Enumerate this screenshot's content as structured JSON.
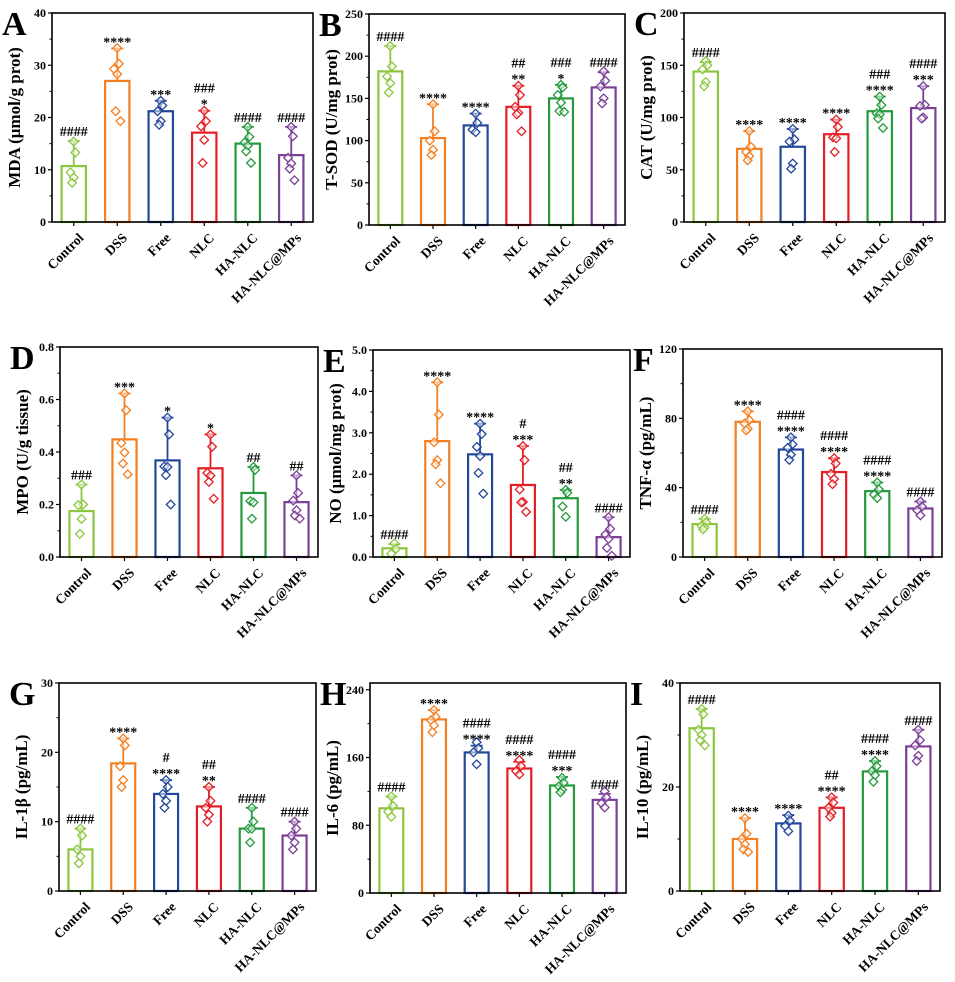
{
  "categories": [
    "Control",
    "DSS",
    "Free",
    "NLC",
    "HA-NLC",
    "HA-NLC@MPs"
  ],
  "group_colors": {
    "Control": "#8cc63f",
    "DSS": "#f47f20",
    "Free": "#23479a",
    "NLC": "#e31e25",
    "HA-NLC": "#249a3c",
    "HA-NLC@MPs": "#7b3f98"
  },
  "chart_data": [
    {
      "id": "A",
      "type": "bar",
      "panel_letter": "A",
      "ylabel": "MDA (μmol/g prot)",
      "ylim": [
        0,
        40
      ],
      "yticks": [
        0,
        10,
        20,
        30,
        40
      ],
      "tick_labels": [
        "0",
        "10",
        "20",
        "30",
        "40"
      ],
      "categories": [
        "Control",
        "DSS",
        "Free",
        "NLC",
        "HA-NLC",
        "HA-NLC@MPs"
      ],
      "values": [
        10.7,
        27.0,
        21.2,
        17.1,
        15.0,
        12.8
      ],
      "error_upper": [
        15.5,
        33.2,
        23.2,
        21.3,
        18.2,
        18.2
      ],
      "points": [
        [
          15.4,
          13.3,
          9.5,
          8.5,
          7.5
        ],
        [
          33.3,
          30.3,
          29.3,
          28.3,
          21.2,
          19.3
        ],
        [
          23.2,
          22.3,
          21.2,
          19.3,
          18.6
        ],
        [
          21.3,
          19.3,
          18.3,
          15.7,
          11.3
        ],
        [
          18.2,
          16.3,
          15.2,
          14.6,
          13.5,
          11.3
        ],
        [
          18.2,
          16.4,
          12.3,
          11.2,
          10.2,
          8.0
        ]
      ],
      "sig_hash": [
        "####",
        "",
        "",
        "###",
        "####",
        "####"
      ],
      "sig_star": [
        "",
        "****",
        "***",
        "*",
        "",
        ""
      ]
    },
    {
      "id": "B",
      "type": "bar",
      "panel_letter": "B",
      "ylabel": "T-SOD (U/mg prot)",
      "ylim": [
        0,
        250
      ],
      "yticks": [
        0,
        50,
        100,
        150,
        200,
        250
      ],
      "tick_labels": [
        "0",
        "50",
        "100",
        "150",
        "200",
        "250"
      ],
      "categories": [
        "Control",
        "DSS",
        "Free",
        "NLC",
        "HA-NLC",
        "HA-NLC@MPs"
      ],
      "values": [
        182,
        103,
        118,
        140,
        150,
        163
      ],
      "error_upper": [
        212,
        143,
        132,
        165,
        166,
        181
      ],
      "points": [
        [
          212,
          188,
          176,
          168,
          157
        ],
        [
          143,
          111,
          100,
          89,
          83
        ],
        [
          132,
          121,
          113,
          110
        ],
        [
          165,
          154,
          140,
          133,
          131,
          111
        ],
        [
          166,
          163,
          154,
          145,
          135,
          134
        ],
        [
          182,
          171,
          164,
          150,
          144
        ]
      ],
      "sig_hash": [
        "####",
        "",
        "",
        "##",
        "###",
        "####"
      ],
      "sig_star": [
        "",
        "****",
        "****",
        "**",
        "*",
        ""
      ]
    },
    {
      "id": "C",
      "type": "bar",
      "panel_letter": "C",
      "ylabel": "CAT (U/mg prot)",
      "ylim": [
        0,
        200
      ],
      "yticks": [
        0,
        50,
        100,
        150,
        200
      ],
      "tick_labels": [
        "0",
        "50",
        "100",
        "150",
        "200"
      ],
      "categories": [
        "Control",
        "DSS",
        "Free",
        "NLC",
        "HA-NLC",
        "HA-NLC@MPs"
      ],
      "values": [
        144,
        70,
        72,
        84,
        106,
        109
      ],
      "error_upper": [
        153,
        87,
        89,
        98,
        120,
        130
      ],
      "points": [
        [
          154,
          150,
          146,
          134,
          130
        ],
        [
          87,
          72,
          67,
          63,
          59
        ],
        [
          89,
          79,
          77,
          56,
          51
        ],
        [
          98,
          91,
          81,
          80,
          67
        ],
        [
          120,
          112,
          104,
          103,
          99,
          90
        ],
        [
          130,
          112,
          111,
          100,
          99
        ]
      ],
      "sig_hash": [
        "####",
        "",
        "",
        "",
        "###",
        "####"
      ],
      "sig_star": [
        "",
        "****",
        "****",
        "****",
        "****",
        "***"
      ]
    },
    {
      "id": "D",
      "type": "bar",
      "panel_letter": "D",
      "ylabel": "MPO (U/g tissue)",
      "ylim": [
        0,
        0.8
      ],
      "yticks": [
        0,
        0.2,
        0.4,
        0.6,
        0.8
      ],
      "tick_labels": [
        "0.0",
        "0.2",
        "0.4",
        "0.6",
        "0.8"
      ],
      "categories": [
        "Control",
        "DSS",
        "Free",
        "NLC",
        "HA-NLC",
        "HA-NLC@MPs"
      ],
      "values": [
        0.175,
        0.448,
        0.368,
        0.338,
        0.244,
        0.209
      ],
      "error_upper": [
        0.276,
        0.623,
        0.531,
        0.467,
        0.343,
        0.311
      ],
      "points": [
        [
          0.276,
          0.2,
          0.198,
          0.145,
          0.088
        ],
        [
          0.623,
          0.559,
          0.434,
          0.398,
          0.356,
          0.315
        ],
        [
          0.531,
          0.467,
          0.345,
          0.343,
          0.312,
          0.2
        ],
        [
          0.467,
          0.42,
          0.32,
          0.31,
          0.286,
          0.222
        ],
        [
          0.343,
          0.332,
          0.213,
          0.208,
          0.146
        ],
        [
          0.311,
          0.244,
          0.215,
          0.178,
          0.158,
          0.146
        ]
      ],
      "sig_hash": [
        "###",
        "",
        "",
        "",
        "##",
        "##"
      ],
      "sig_star": [
        "",
        "***",
        "*",
        "*",
        "",
        ""
      ]
    },
    {
      "id": "E",
      "type": "bar",
      "panel_letter": "E",
      "ylabel": "NO (μmol/mg prot)",
      "ylim": [
        0,
        5.0
      ],
      "yticks": [
        0,
        1,
        2,
        3,
        4,
        5
      ],
      "tick_labels": [
        "0.0",
        "1.0",
        "2.0",
        "3.0",
        "4.0",
        "5.0"
      ],
      "categories": [
        "Control",
        "DSS",
        "Free",
        "NLC",
        "HA-NLC",
        "HA-NLC@MPs"
      ],
      "values": [
        0.21,
        2.8,
        2.48,
        1.74,
        1.42,
        0.48
      ],
      "error_upper": [
        0.31,
        4.22,
        3.22,
        2.68,
        1.62,
        0.96
      ],
      "points": [
        [
          0.33,
          0.2,
          0.08
        ],
        [
          4.22,
          3.44,
          2.77,
          2.34,
          2.24,
          1.78
        ],
        [
          3.22,
          2.97,
          2.66,
          2.44,
          2.03,
          1.53
        ],
        [
          2.68,
          2.34,
          1.63,
          1.33,
          1.32,
          1.09
        ],
        [
          1.62,
          1.55,
          1.22,
          0.97
        ],
        [
          0.96,
          0.68,
          0.54,
          0.44,
          0.22,
          0.03
        ]
      ],
      "sig_hash": [
        "####",
        "",
        "",
        "#",
        "##",
        "####"
      ],
      "sig_star": [
        "",
        "****",
        "****",
        "***",
        "**",
        ""
      ]
    },
    {
      "id": "F",
      "type": "bar",
      "panel_letter": "F",
      "ylabel": "TNF-α (pg/mL)",
      "ylim": [
        0,
        120
      ],
      "yticks": [
        0,
        40,
        80,
        120
      ],
      "tick_labels": [
        "0",
        "40",
        "80",
        "120"
      ],
      "categories": [
        "Control",
        "DSS",
        "Free",
        "NLC",
        "HA-NLC",
        "HA-NLC@MPs"
      ],
      "values": [
        19,
        78,
        62,
        49,
        38,
        28
      ],
      "error_upper": [
        22,
        84,
        69,
        57,
        43,
        32
      ],
      "points": [
        [
          22,
          20,
          18,
          17,
          16
        ],
        [
          84,
          79,
          77,
          74,
          73
        ],
        [
          69,
          65,
          63,
          59,
          56
        ],
        [
          57,
          54,
          48,
          45,
          42
        ],
        [
          43,
          39,
          36,
          34
        ],
        [
          32,
          29,
          27,
          24
        ]
      ],
      "sig_hash": [
        "####",
        "",
        "####",
        "####",
        "####",
        "####"
      ],
      "sig_star": [
        "",
        "****",
        "****",
        "****",
        "****",
        ""
      ]
    },
    {
      "id": "G",
      "type": "bar",
      "panel_letter": "G",
      "ylabel": "IL-1β (pg/mL)",
      "ylim": [
        0,
        30
      ],
      "yticks": [
        0,
        10,
        20,
        30
      ],
      "tick_labels": [
        "0",
        "10",
        "20",
        "30"
      ],
      "categories": [
        "Control",
        "DSS",
        "Free",
        "NLC",
        "HA-NLC",
        "HA-NLC@MPs"
      ],
      "values": [
        6,
        18.4,
        14,
        12.2,
        9,
        8
      ],
      "error_upper": [
        9,
        22,
        16,
        15,
        12,
        10
      ],
      "points": [
        [
          9,
          8,
          6,
          5,
          4
        ],
        [
          22,
          21,
          18,
          16,
          15
        ],
        [
          16,
          15,
          14,
          13,
          12
        ],
        [
          15,
          13,
          12,
          11,
          10
        ],
        [
          12,
          10,
          9,
          9,
          7
        ],
        [
          10,
          9,
          8,
          7,
          6
        ]
      ],
      "sig_hash": [
        "####",
        "",
        "#",
        "##",
        "####",
        "####"
      ],
      "sig_star": [
        "",
        "****",
        "****",
        "**",
        "",
        ""
      ]
    },
    {
      "id": "H",
      "type": "bar",
      "panel_letter": "H",
      "ylabel": "IL-6 (pg/mL)",
      "ylim": [
        0,
        248
      ],
      "yticks": [
        0,
        80,
        160,
        240
      ],
      "tick_labels": [
        "0",
        "80",
        "160",
        "240"
      ],
      "categories": [
        "Control",
        "DSS",
        "Free",
        "NLC",
        "HA-NLC",
        "HA-NLC@MPs"
      ],
      "values": [
        100,
        205,
        166,
        147,
        127,
        110
      ],
      "error_upper": [
        114,
        216,
        174,
        155,
        137,
        117
      ],
      "points": [
        [
          114,
          103,
          96,
          90
        ],
        [
          216,
          208,
          204,
          198,
          190
        ],
        [
          178,
          171,
          166,
          152
        ],
        [
          157,
          150,
          144,
          140
        ],
        [
          136,
          130,
          126,
          122,
          119
        ],
        [
          120,
          113,
          106,
          101
        ]
      ],
      "sig_hash": [
        "####",
        "",
        "####",
        "####",
        "####",
        "####"
      ],
      "sig_star": [
        "",
        "****",
        "****",
        "****",
        "***",
        ""
      ]
    },
    {
      "id": "I",
      "type": "bar",
      "panel_letter": "I",
      "ylabel": "IL-10 (pg/mL)",
      "ylim": [
        0,
        40
      ],
      "yticks": [
        0,
        20,
        40
      ],
      "tick_labels": [
        "0",
        "20",
        "40"
      ],
      "categories": [
        "Control",
        "DSS",
        "Free",
        "NLC",
        "HA-NLC",
        "HA-NLC@MPs"
      ],
      "values": [
        31.3,
        10,
        13,
        16,
        23,
        27.8
      ],
      "error_upper": [
        35,
        14,
        14.6,
        18,
        25,
        31
      ],
      "points": [
        [
          35,
          34,
          31,
          30,
          29,
          28
        ],
        [
          14,
          11,
          10,
          9,
          8,
          7.5
        ],
        [
          14.5,
          13.5,
          12.5,
          11.5
        ],
        [
          18,
          17,
          16,
          15,
          14.3
        ],
        [
          25,
          24,
          23,
          22.3,
          21
        ],
        [
          31,
          29,
          28,
          26,
          25
        ]
      ],
      "sig_hash": [
        "####",
        "",
        "",
        "##",
        "####",
        "####"
      ],
      "sig_star": [
        "",
        "****",
        "****",
        "****",
        "****",
        ""
      ]
    }
  ]
}
